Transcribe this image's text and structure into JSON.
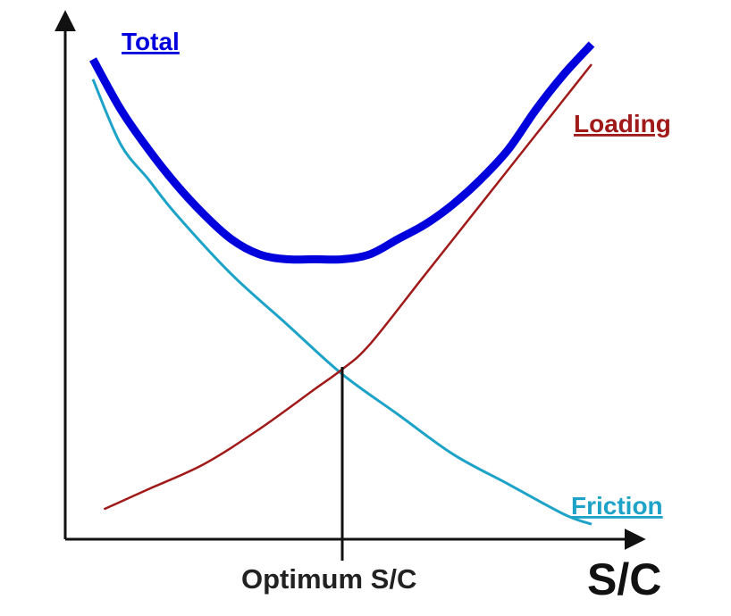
{
  "chart_data": {
    "type": "line",
    "title": "",
    "xlabel": "S/C",
    "ylabel": "",
    "xlim": [
      0,
      1
    ],
    "ylim": [
      0,
      1
    ],
    "grid": false,
    "legend": "inline labels at series ends",
    "series": [
      {
        "name": "Total",
        "color": "#0000dd",
        "x": [
          0.05,
          0.1,
          0.15,
          0.2,
          0.25,
          0.3,
          0.35,
          0.4,
          0.45,
          0.5,
          0.55,
          0.6,
          0.65,
          0.7,
          0.75,
          0.8,
          0.85,
          0.9,
          0.95
        ],
        "y": [
          0.96,
          0.86,
          0.78,
          0.71,
          0.65,
          0.6,
          0.57,
          0.56,
          0.56,
          0.56,
          0.57,
          0.6,
          0.63,
          0.67,
          0.72,
          0.78,
          0.86,
          0.93,
          0.99
        ]
      },
      {
        "name": "Loading",
        "color": "#a01a1a",
        "x": [
          0.07,
          0.15,
          0.25,
          0.35,
          0.45,
          0.5,
          0.55,
          0.65,
          0.75,
          0.85,
          0.95
        ],
        "y": [
          0.06,
          0.1,
          0.15,
          0.22,
          0.3,
          0.34,
          0.39,
          0.53,
          0.67,
          0.81,
          0.95
        ]
      },
      {
        "name": "Friction",
        "color": "#1ea3c8",
        "x": [
          0.05,
          0.1,
          0.15,
          0.2,
          0.3,
          0.4,
          0.5,
          0.6,
          0.7,
          0.8,
          0.9,
          0.95
        ],
        "y": [
          0.92,
          0.79,
          0.72,
          0.65,
          0.53,
          0.43,
          0.33,
          0.25,
          0.17,
          0.11,
          0.05,
          0.03
        ]
      }
    ],
    "annotations": [
      {
        "text": "Optimum S/C",
        "x": 0.5
      }
    ]
  },
  "labels": {
    "total": "Total",
    "loading": "Loading",
    "friction": "Friction",
    "optimum": "Optimum S/C",
    "x_axis": "S/C"
  },
  "colors": {
    "total": "#0000dd",
    "loading": "#a01a1a",
    "friction": "#1ea3c8",
    "axis": "#111111"
  }
}
